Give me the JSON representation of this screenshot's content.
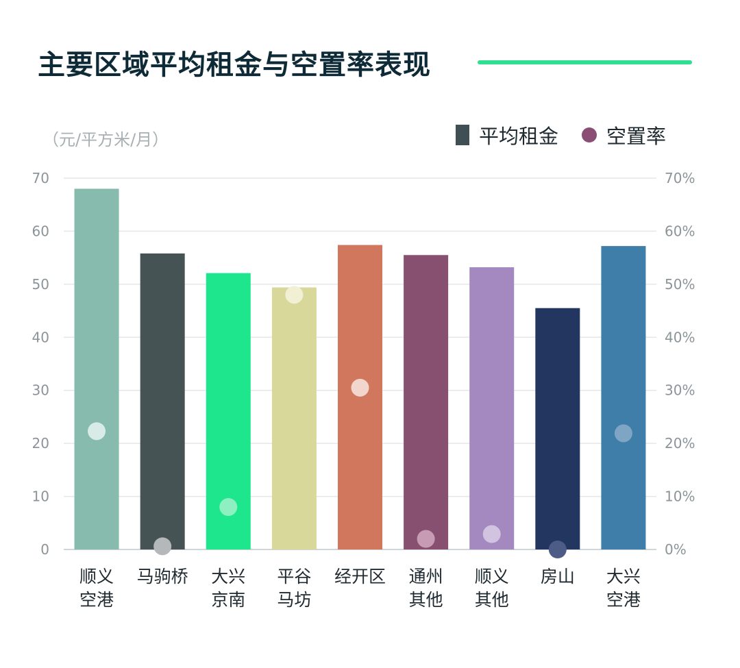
{
  "title": "主要区域平均租金与空置率表现",
  "unit_label": "（元/平方米/月）",
  "legend": {
    "rent_label": "平均租金",
    "vacancy_label": "空置率"
  },
  "colors": {
    "title_line": "#2ee08f",
    "legend_rent": "#3f4f53",
    "legend_vacancy": "#8a4e74",
    "grid": "#e3e7e9",
    "baseline": "#cfd5d8"
  },
  "chart_data": {
    "type": "bar",
    "title": "主要区域平均租金与空置率表现",
    "categories": [
      [
        "顺义",
        "空港"
      ],
      [
        "马驹桥"
      ],
      [
        "大兴",
        "京南"
      ],
      [
        "平谷",
        "马坊"
      ],
      [
        "经开区"
      ],
      [
        "通州",
        "其他"
      ],
      [
        "顺义",
        "其他"
      ],
      [
        "房山"
      ],
      [
        "大兴",
        "空港"
      ]
    ],
    "y_left": {
      "min": 0,
      "max": 70,
      "ticks": [
        0,
        10,
        20,
        30,
        40,
        50,
        60,
        70
      ],
      "tick_labels": [
        "0",
        "10",
        "20",
        "30",
        "40",
        "50",
        "60",
        "70"
      ]
    },
    "y_right": {
      "min": 0,
      "max": 70,
      "ticks": [
        0,
        10,
        20,
        30,
        40,
        50,
        60,
        70
      ],
      "tick_labels": [
        "0%",
        "10%",
        "20%",
        "30%",
        "40%",
        "50%",
        "60%",
        "70%"
      ]
    },
    "grid": true,
    "legend_position": "top-right",
    "series": [
      {
        "name": "平均租金",
        "type": "bar",
        "axis": "left",
        "values": [
          68,
          55.8,
          52.1,
          49.4,
          57.4,
          55.5,
          53.2,
          45.5,
          57.2
        ],
        "colors": [
          "#86bbae",
          "#465355",
          "#1ee68d",
          "#d9d89b",
          "#d1775d",
          "#885070",
          "#a488c0",
          "#223660",
          "#3e7ea8"
        ]
      },
      {
        "name": "空置率",
        "type": "scatter",
        "axis": "right",
        "values": [
          22.3,
          0.6,
          8.0,
          48.0,
          30.5,
          2.0,
          2.9,
          0.0,
          21.9
        ],
        "colors": [
          "#d9ebe6",
          "#b4b8b9",
          "#8ef0c1",
          "#f1efd4",
          "#f2d6cd",
          "#c79bb4",
          "#d2c4e1",
          "#4c5c86",
          "#7ea6c4"
        ]
      }
    ]
  }
}
